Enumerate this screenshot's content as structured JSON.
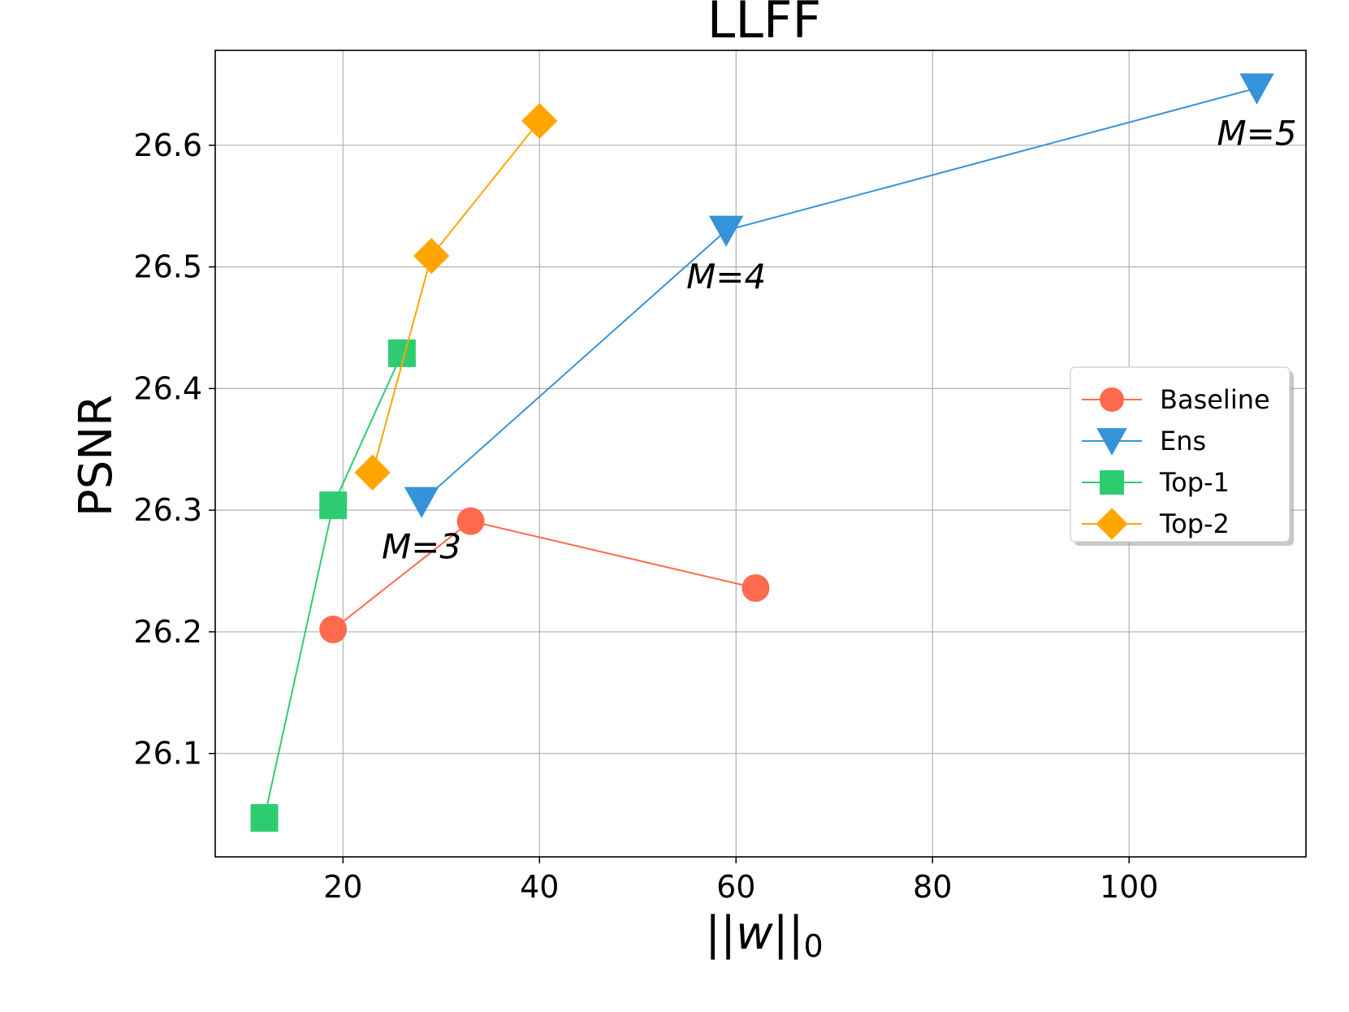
{
  "chart_data": {
    "type": "line",
    "title": "LLFF",
    "xlabel": "||w||",
    "xlabel_subscript": "0",
    "ylabel": "PSNR",
    "xlim": [
      7,
      118
    ],
    "ylim": [
      26.015,
      26.678
    ],
    "xticks": [
      20,
      40,
      60,
      80,
      100
    ],
    "yticks": [
      26.1,
      26.2,
      26.3,
      26.4,
      26.5,
      26.6
    ],
    "grid": true,
    "legend_position": "right",
    "series": [
      {
        "name": "Baseline",
        "marker": "circle",
        "color": "#fd6a4e",
        "points": [
          {
            "x": 19,
            "y": 26.202
          },
          {
            "x": 33,
            "y": 26.291
          },
          {
            "x": 62,
            "y": 26.236
          }
        ]
      },
      {
        "name": "Ens",
        "marker": "triangle-down",
        "color": "#3594d9",
        "points": [
          {
            "x": 28,
            "y": 26.307
          },
          {
            "x": 59,
            "y": 26.53
          },
          {
            "x": 113,
            "y": 26.647
          }
        ]
      },
      {
        "name": "Top-1",
        "marker": "square",
        "color": "#2ecc71",
        "points": [
          {
            "x": 12,
            "y": 26.047
          },
          {
            "x": 19,
            "y": 26.304
          },
          {
            "x": 26,
            "y": 26.429
          }
        ]
      },
      {
        "name": "Top-2",
        "marker": "diamond",
        "color": "#ffa500",
        "points": [
          {
            "x": 23,
            "y": 26.331
          },
          {
            "x": 29,
            "y": 26.509
          },
          {
            "x": 40,
            "y": 26.62
          }
        ]
      }
    ],
    "annotations": [
      {
        "text": "M=3",
        "x": 28,
        "y": 26.287
      },
      {
        "text": "M=4",
        "x": 59,
        "y": 26.509
      },
      {
        "text": "M=5",
        "x": 113,
        "y": 26.627
      }
    ]
  }
}
